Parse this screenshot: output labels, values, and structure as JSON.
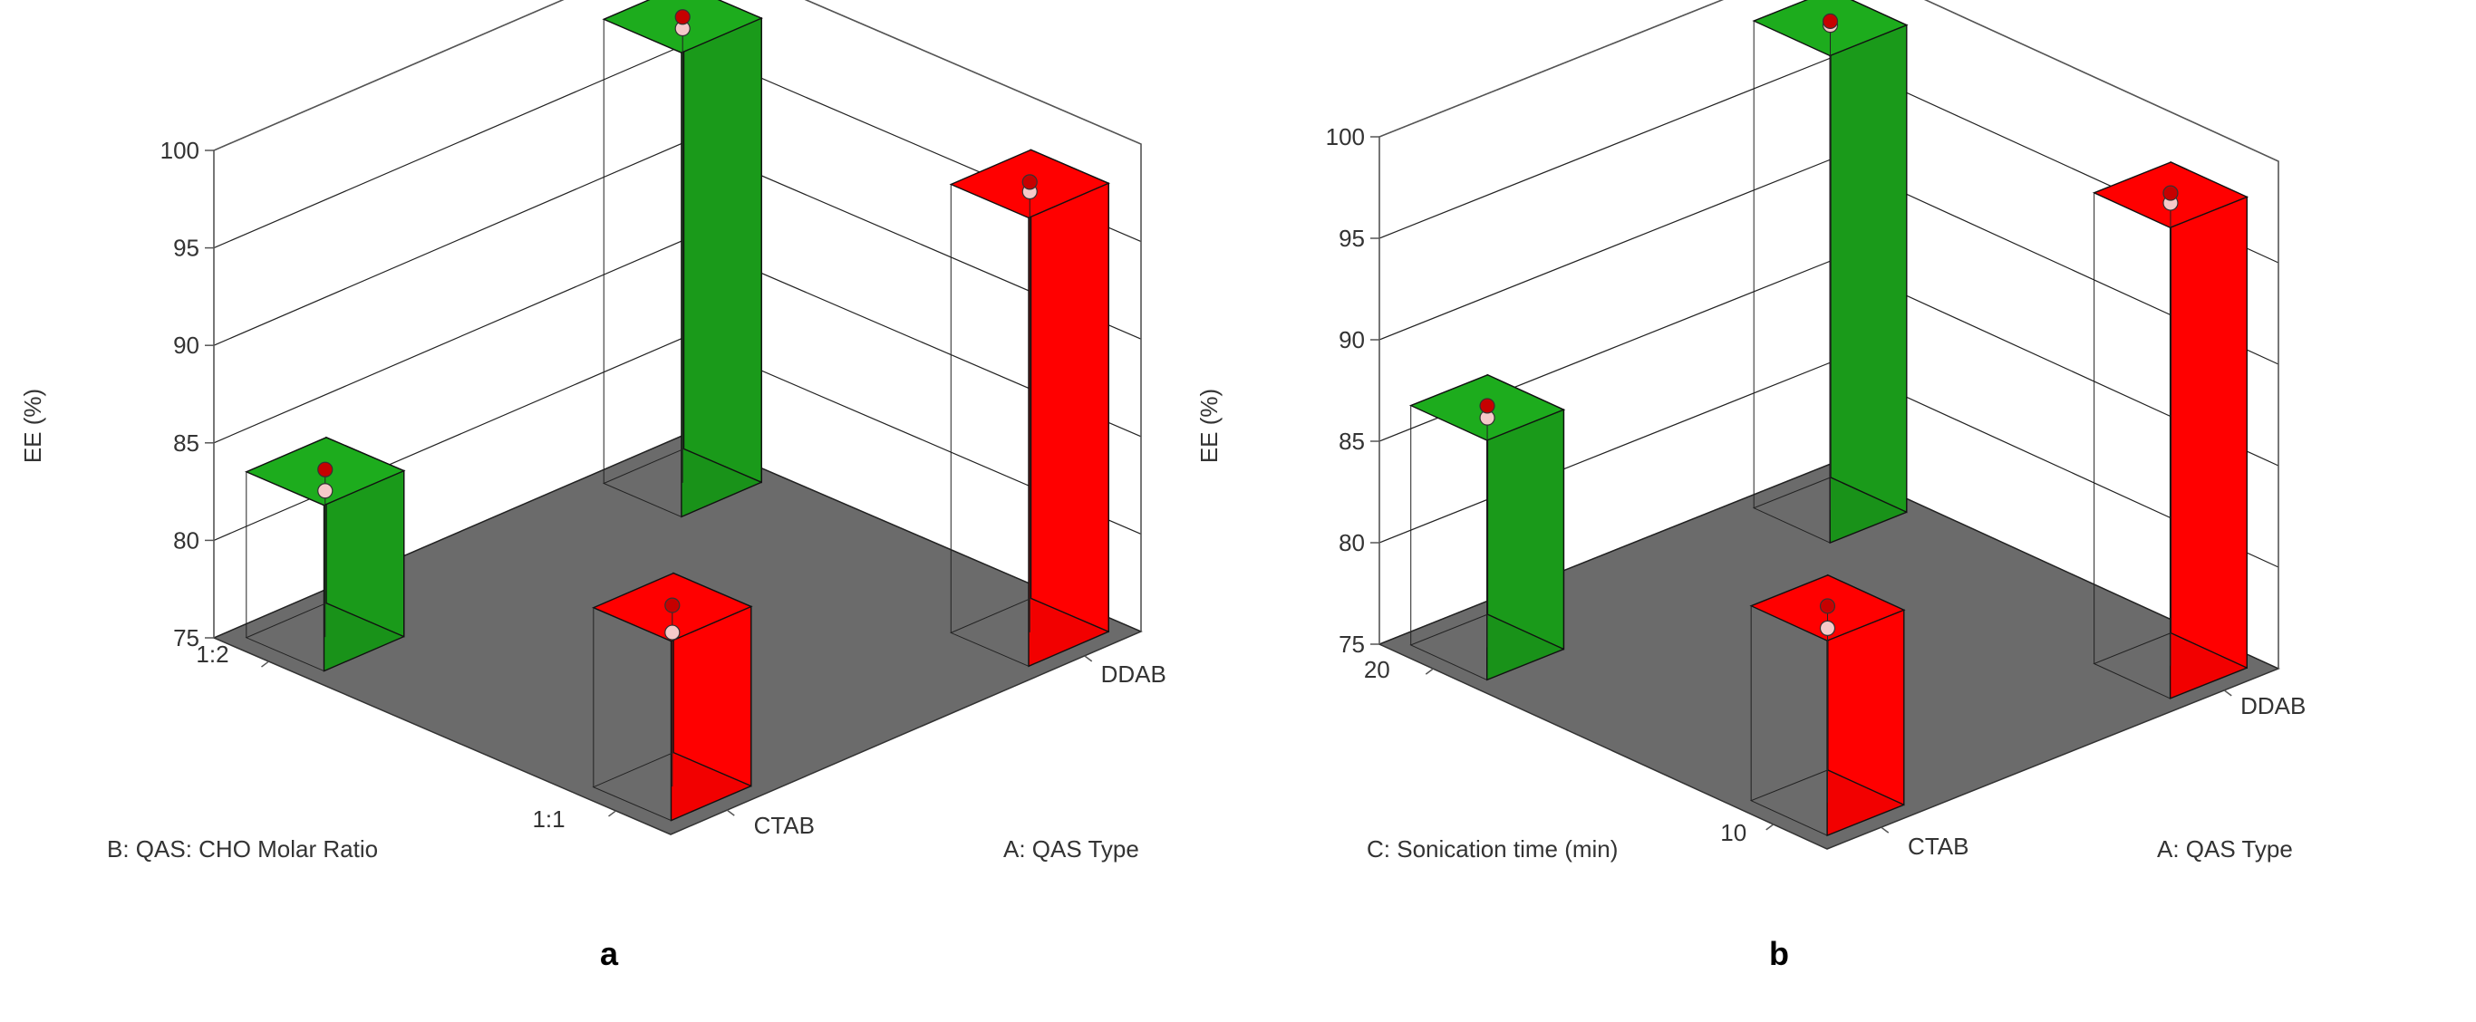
{
  "chart_data": [
    {
      "type": "bar3d",
      "panel_label": "a",
      "zlabel": "EE (%)",
      "zlim": [
        75,
        100
      ],
      "zticks": [
        75,
        80,
        85,
        90,
        95,
        100
      ],
      "x_factor": {
        "label": "A: QAS Type",
        "levels": [
          "CTAB",
          "DDAB"
        ]
      },
      "y_factor": {
        "label": "B: QAS: CHO Molar Ratio",
        "levels": [
          "1:1",
          "1:2"
        ]
      },
      "bars": [
        {
          "x": "CTAB",
          "y": "1:2",
          "value": 83.5,
          "predicted": 82.5,
          "color": "#1a9a1a"
        },
        {
          "x": "DDAB",
          "y": "1:2",
          "value": 98.8,
          "predicted": 98.3,
          "color": "#1a9a1a"
        },
        {
          "x": "CTAB",
          "y": "1:1",
          "value": 84.2,
          "predicted": 82.9,
          "color": "#ff0000"
        },
        {
          "x": "DDAB",
          "y": "1:1",
          "value": 98.0,
          "predicted": 97.6,
          "color": "#ff0000"
        }
      ]
    },
    {
      "type": "bar3d",
      "panel_label": "b",
      "zlabel": "EE (%)",
      "zlim": [
        75,
        100
      ],
      "zticks": [
        75,
        80,
        85,
        90,
        95,
        100
      ],
      "x_factor": {
        "label": "A: QAS Type",
        "levels": [
          "CTAB",
          "DDAB"
        ]
      },
      "y_factor": {
        "label": "C: Sonication time (min)",
        "levels": [
          "10",
          "20"
        ]
      },
      "bars": [
        {
          "x": "CTAB",
          "y": "20",
          "value": 86.8,
          "predicted": 86.3,
          "color": "#1a9a1a"
        },
        {
          "x": "DDAB",
          "y": "20",
          "value": 99.0,
          "predicted": 98.9,
          "color": "#1a9a1a"
        },
        {
          "x": "CTAB",
          "y": "10",
          "value": 84.6,
          "predicted": 83.6,
          "color": "#ff0000"
        },
        {
          "x": "DDAB",
          "y": "10",
          "value": 98.2,
          "predicted": 97.8,
          "color": "#ff0000"
        }
      ]
    }
  ]
}
